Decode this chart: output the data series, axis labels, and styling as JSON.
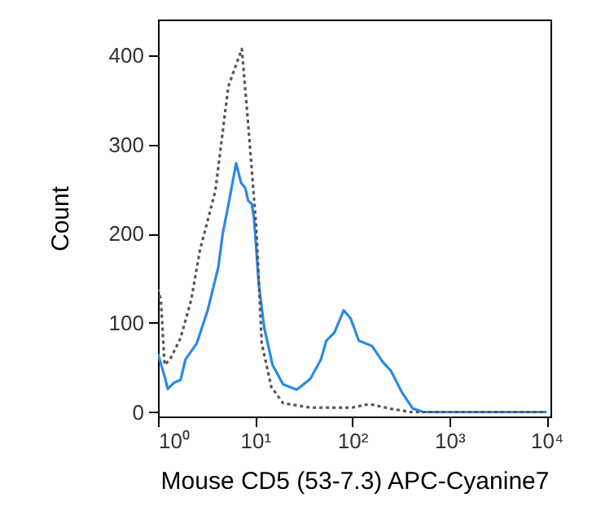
{
  "chart_data": {
    "type": "line",
    "xlabel": "Mouse CD5 (53-7.3) APC-Cyanine7",
    "ylabel": "Count",
    "log": "x",
    "grid": false,
    "xlim": [
      1,
      11000
    ],
    "ylim": [
      -5,
      440
    ],
    "xticks": [
      {
        "value": 1,
        "label": "10⁰"
      },
      {
        "value": 10,
        "label": "10¹"
      },
      {
        "value": 100,
        "label": "10²"
      },
      {
        "value": 1000,
        "label": "10³"
      },
      {
        "value": 10000,
        "label": "10⁴"
      }
    ],
    "yticks": [
      0,
      100,
      200,
      300,
      400
    ],
    "series": [
      {
        "color": "#2b8ae6",
        "line_style": "solid",
        "x": [
          1.0,
          1.17,
          1.26,
          1.47,
          1.71,
          1.92,
          2.51,
          3.25,
          4.19,
          4.64,
          5.41,
          6.38,
          7.16,
          7.94,
          8.48,
          9.26,
          9.73,
          10.3,
          10.9,
          12.4,
          15.1,
          19.4,
          26.8,
          36.9,
          47.7,
          54.1,
          65.6,
          81.6,
          96.2,
          117,
          160,
          207,
          251,
          325,
          419,
          541,
          10000
        ],
        "values": [
          65,
          40,
          26,
          33,
          36,
          59,
          77,
          114,
          163,
          200,
          237,
          279,
          257,
          251,
          237,
          233,
          218,
          182,
          144,
          95,
          53,
          31,
          25,
          37,
          59,
          80,
          89,
          114,
          105,
          80,
          74,
          56,
          46,
          22,
          4,
          0,
          0
        ]
      },
      {
        "color": "#555555",
        "line_style": "dotted",
        "x": [
          1.0,
          1.07,
          1.17,
          1.33,
          1.71,
          2.2,
          2.7,
          3.9,
          5.3,
          7.3,
          8.5,
          10.3,
          11.7,
          14.7,
          19.4,
          36.9,
          100,
          150,
          240,
          400,
          10000
        ],
        "values": [
          138,
          126,
          53,
          59,
          83,
          126,
          181,
          248,
          365,
          407,
          322,
          206,
          77,
          28,
          10,
          5,
          5,
          9,
          4,
          0,
          0
        ]
      }
    ]
  }
}
